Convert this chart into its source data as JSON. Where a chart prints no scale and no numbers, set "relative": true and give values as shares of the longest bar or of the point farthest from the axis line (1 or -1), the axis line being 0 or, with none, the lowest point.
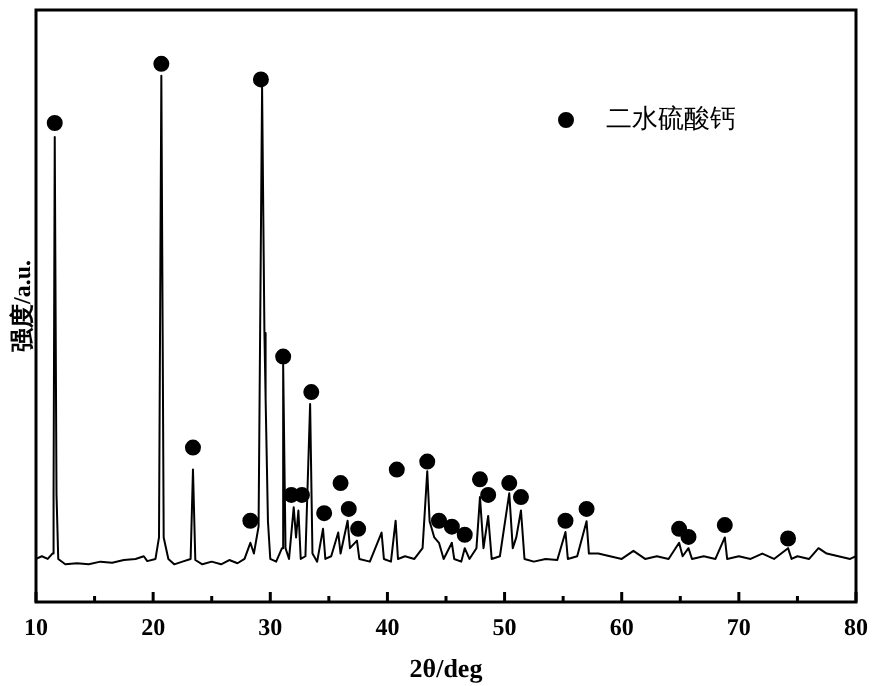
{
  "chart_data": {
    "type": "line",
    "relative": true,
    "xlabel": "2θ/deg",
    "ylabel": "强度/a.u.",
    "xlim": [
      10,
      80
    ],
    "xticks": [
      10,
      {
        "value": 15,
        "label": null
      },
      20,
      {
        "value": 25,
        "label": null
      },
      30,
      {
        "value": 35,
        "label": null
      },
      40,
      {
        "value": 45,
        "label": null
      },
      50,
      {
        "value": 55,
        "label": null
      },
      60,
      {
        "value": 65,
        "label": null
      },
      70,
      {
        "value": 75,
        "label": null
      },
      80
    ],
    "grid": false,
    "legend": "top right",
    "series": [
      {
        "color": "#000000",
        "marker": "none",
        "x": [
          10,
          10.5,
          11.0,
          11.4,
          11.5,
          11.6,
          11.75,
          11.9,
          12.5,
          13.5,
          14.5,
          15.5,
          16.5,
          17.5,
          18.5,
          19.2,
          19.5,
          20.2,
          20.5,
          20.7,
          20.9,
          21.3,
          21.8,
          22.5,
          23.2,
          23.4,
          23.6,
          24.2,
          25,
          25.8,
          26.5,
          27.2,
          27.8,
          28.3,
          28.6,
          29.0,
          29.3,
          29.5,
          29.6,
          29.8,
          30.0,
          30.5,
          31.0,
          31.1,
          31.3,
          31.6,
          32.0,
          32.2,
          32.4,
          32.6,
          33.0,
          33.4,
          33.6,
          34.0,
          34.5,
          34.7,
          35.2,
          35.8,
          36.0,
          36.6,
          36.8,
          37.4,
          37.6,
          38.5,
          39.5,
          39.7,
          40.3,
          40.7,
          40.9,
          41.5,
          42.3,
          43.0,
          43.4,
          43.6,
          44.0,
          44.4,
          44.8,
          45.5,
          45.7,
          46.3,
          46.6,
          47.0,
          47.6,
          47.9,
          48.2,
          48.6,
          48.9,
          49.6,
          50.4,
          50.7,
          51.0,
          51.4,
          51.7,
          52.5,
          53.5,
          54.5,
          55.2,
          55.4,
          56.2,
          57.0,
          57.2,
          58,
          59,
          60,
          61,
          62,
          63,
          64,
          64.9,
          65.2,
          65.7,
          66,
          67,
          68,
          68.8,
          69,
          70,
          71,
          72,
          73,
          74.2,
          74.5,
          75,
          76,
          76.8,
          77.5,
          78.5,
          79.5,
          80
        ],
        "values": [
          0.08,
          0.085,
          0.08,
          0.09,
          0.2,
          0.864,
          0.2,
          0.08,
          0.07,
          0.072,
          0.07,
          0.075,
          0.073,
          0.078,
          0.08,
          0.085,
          0.076,
          0.08,
          0.12,
          0.978,
          0.12,
          0.08,
          0.07,
          0.075,
          0.08,
          0.246,
          0.078,
          0.07,
          0.075,
          0.07,
          0.078,
          0.072,
          0.08,
          0.11,
          0.09,
          0.14,
          0.956,
          0.5,
          0.379,
          0.15,
          0.08,
          0.075,
          0.1,
          0.441,
          0.1,
          0.08,
          0.176,
          0.12,
          0.17,
          0.08,
          0.085,
          0.368,
          0.09,
          0.075,
          0.136,
          0.08,
          0.085,
          0.129,
          0.09,
          0.151,
          0.1,
          0.114,
          0.08,
          0.075,
          0.129,
          0.08,
          0.075,
          0.151,
          0.08,
          0.085,
          0.08,
          0.1,
          0.243,
          0.15,
          0.12,
          0.11,
          0.08,
          0.11,
          0.08,
          0.075,
          0.1,
          0.08,
          0.1,
          0.195,
          0.1,
          0.16,
          0.08,
          0.085,
          0.202,
          0.1,
          0.12,
          0.17,
          0.08,
          0.075,
          0.08,
          0.078,
          0.13,
          0.08,
          0.085,
          0.15,
          0.09,
          0.09,
          0.085,
          0.08,
          0.095,
          0.08,
          0.085,
          0.08,
          0.11,
          0.085,
          0.1,
          0.08,
          0.085,
          0.08,
          0.12,
          0.08,
          0.085,
          0.08,
          0.09,
          0.08,
          0.1,
          0.08,
          0.085,
          0.08,
          0.1,
          0.09,
          0.085,
          0.08,
          0.085
        ]
      },
      {
        "type": "scatter",
        "name": "二水硫酸钙",
        "color": "#000000",
        "marker": "circle",
        "x": [
          11.6,
          20.7,
          23.4,
          28.3,
          29.2,
          31.1,
          31.8,
          32.7,
          33.5,
          34.6,
          36.0,
          36.7,
          37.5,
          40.8,
          43.4,
          44.4,
          45.5,
          46.6,
          47.9,
          48.6,
          50.4,
          51.4,
          55.2,
          57.0,
          64.9,
          65.7,
          68.8,
          74.2
        ],
        "values": [
          0.89,
          1,
          0.287,
          0.151,
          0.971,
          0.456,
          0.199,
          0.199,
          0.39,
          0.165,
          0.221,
          0.173,
          0.136,
          0.246,
          0.261,
          0.151,
          0.14,
          0.125,
          0.228,
          0.199,
          0.221,
          0.195,
          0.151,
          0.173,
          0.136,
          0.121,
          0.143,
          0.118
        ]
      }
    ]
  }
}
